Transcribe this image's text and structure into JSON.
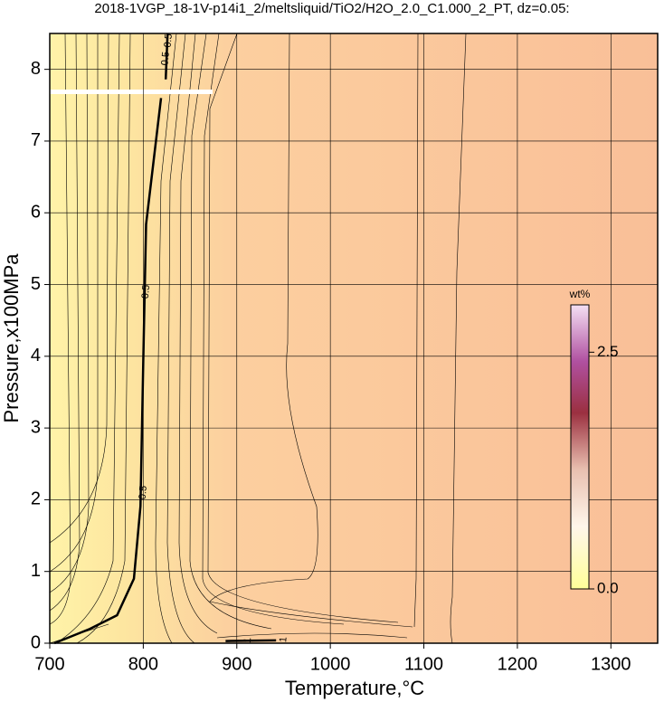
{
  "chart_data": {
    "type": "contour",
    "title": "2018-1VGP_18-1V-p14i1_2/meltsliquid/TiO2/H2O_2.0_C1.000_2_PT, dz=0.05:",
    "x_label": "Temperature,°C",
    "y_label": "Pressure,x100MPa",
    "xlim": [
      700,
      1350
    ],
    "ylim": [
      0,
      8.5
    ],
    "xticks": [
      700,
      800,
      900,
      1000,
      1100,
      1200,
      1300
    ],
    "yticks": [
      0,
      1,
      2,
      3,
      4,
      5,
      6,
      7,
      8
    ],
    "grid": true,
    "contours": [
      {
        "level": 0.5,
        "color": "#000000",
        "pieces": [
          {
            "x": [
              705,
              743,
              772,
              790,
              797,
              800,
              803,
              819
            ],
            "y": [
              0,
              0.2,
              0.39,
              0.9,
              1.91,
              3.94,
              5.84,
              7.6
            ]
          },
          {
            "x": [
              824,
              826
            ],
            "y": [
              7.86,
              8.5
            ]
          }
        ],
        "labels": [
          {
            "x": 800,
            "y": 2.1
          },
          {
            "x": 803,
            "y": 4.9
          },
          {
            "x": 824,
            "y": 8.15
          },
          {
            "x": 827,
            "y": 8.4
          }
        ]
      },
      {
        "level": 1,
        "color": "#000000",
        "pieces": [
          {
            "x": [
              888,
              942
            ],
            "y": [
              0.03,
              0.04
            ]
          }
        ],
        "labels": [
          {
            "x": 912,
            "y": 0.04
          },
          {
            "x": 950,
            "y": 0.05
          }
        ]
      }
    ],
    "colorbar": {
      "label": "wt%",
      "lim": [
        0,
        3.0
      ],
      "ticks": [
        {
          "value": 0,
          "label": "0.0"
        },
        {
          "value": 2.5,
          "label": "2.5"
        }
      ]
    }
  }
}
